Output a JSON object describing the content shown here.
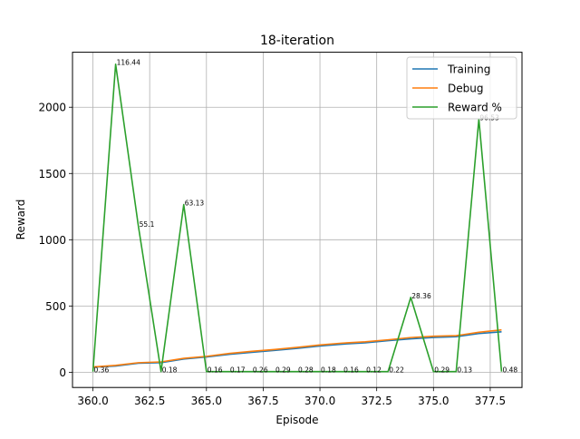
{
  "chart_data": {
    "type": "line",
    "title": "18-iteration",
    "xlabel": "Episode",
    "ylabel": "Reward",
    "xlim": [
      359.1,
      378.9
    ],
    "ylim": [
      -115,
      2415
    ],
    "xticks": [
      360.0,
      362.5,
      365.0,
      367.5,
      370.0,
      372.5,
      375.0,
      377.5
    ],
    "xtick_labels": [
      "360.0",
      "362.5",
      "365.0",
      "367.5",
      "370.0",
      "372.5",
      "375.0",
      "377.5"
    ],
    "yticks": [
      0,
      500,
      1000,
      1500,
      2000
    ],
    "ytick_labels": [
      "0",
      "500",
      "1000",
      "1500",
      "2000"
    ],
    "grid": true,
    "legend_position": "top-right",
    "x": [
      360,
      361,
      362,
      363,
      364,
      365,
      366,
      367,
      368,
      369,
      370,
      371,
      372,
      373,
      374,
      375,
      376,
      377,
      378
    ],
    "series": [
      {
        "name": "Training",
        "color": "#1f77b4",
        "values": [
          38,
          47,
          68,
          72,
          100,
          115,
          135,
          150,
          165,
          180,
          198,
          212,
          222,
          238,
          252,
          262,
          268,
          292,
          305
        ]
      },
      {
        "name": "Debug",
        "color": "#ff7f0e",
        "values": [
          40,
          52,
          72,
          78,
          105,
          120,
          142,
          158,
          172,
          188,
          206,
          220,
          230,
          245,
          262,
          272,
          276,
          302,
          320
        ]
      },
      {
        "name": "Reward %",
        "color": "#2ca02c",
        "values": [
          5,
          2325,
          1105,
          5,
          1265,
          5,
          5,
          5,
          5,
          5,
          5,
          5,
          5,
          5,
          565,
          5,
          5,
          1910,
          5
        ]
      }
    ],
    "annotations": [
      "0.36",
      "116.44",
      "55.1",
      "0.18",
      "63.13",
      "0.16",
      "0.17",
      "0.26",
      "0.29",
      "0.28",
      "0.18",
      "0.16",
      "0.12",
      "0.22",
      "28.36",
      "0.29",
      "0.13",
      "96.53",
      "0.48"
    ]
  }
}
